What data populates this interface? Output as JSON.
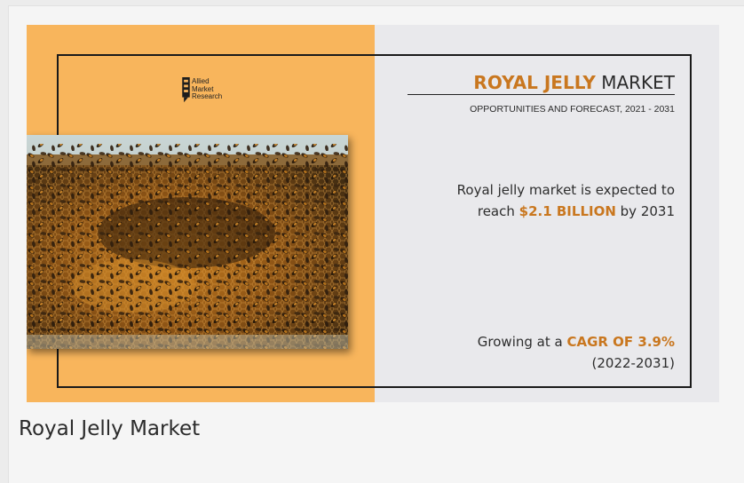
{
  "logo": {
    "line1": "Allied",
    "line2": "Market",
    "line3": "Research"
  },
  "banner": {
    "title_accent": "ROYAL JELLY",
    "title_rest": "MARKET",
    "subtitle": "OPPORTUNITIES AND FORECAST, 2021 - 2031",
    "stat1": {
      "line1": "Royal jelly market is expected to",
      "pre": "reach ",
      "value": "$2.1 BILLION",
      "post": " by 2031"
    },
    "stat2": {
      "pre": "Growing at a ",
      "value": "CAGR OF 3.9%",
      "period": "(2022-2031)"
    }
  },
  "photo_subject": "honeybees-on-honeycomb-frame",
  "caption": "Royal Jelly Market",
  "colors": {
    "accent": "#c9771f",
    "orange_panel": "#f8b55c",
    "grey_panel": "#e9e9ec"
  }
}
